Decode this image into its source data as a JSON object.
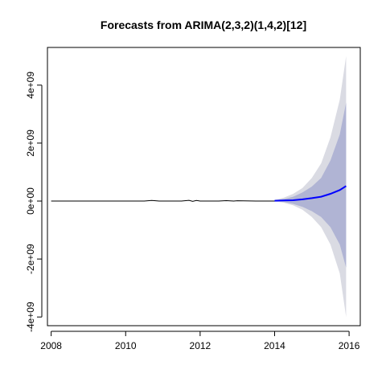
{
  "chart_data": {
    "type": "line",
    "title": "Forecasts from ARIMA(2,3,2)(1,4,2)[12]",
    "xlabel": "",
    "ylabel": "",
    "xlim": [
      2007.9,
      2016.3
    ],
    "ylim": [
      -4300000000.0,
      5300000000.0
    ],
    "x_ticks": [
      2008,
      2010,
      2012,
      2014,
      2016
    ],
    "x_tick_labels": [
      "2008",
      "2010",
      "2012",
      "2014",
      "2016"
    ],
    "y_ticks": [
      -4000000000.0,
      -2000000000.0,
      0,
      2000000000.0,
      4000000000.0
    ],
    "y_tick_labels": [
      "-4e+09",
      "-2e+09",
      "0e+00",
      "2e+09",
      "4e+09"
    ],
    "colors": {
      "observed": "#000000",
      "forecast": "#0000ff",
      "band_80": "#b0b4d4",
      "band_95": "#dadbe3"
    },
    "observed": {
      "x": [
        2008.0,
        2008.5,
        2009.0,
        2009.5,
        2010.0,
        2010.5,
        2010.7,
        2010.9,
        2011.0,
        2011.5,
        2011.7,
        2011.8,
        2011.9,
        2012.0,
        2012.5,
        2012.7,
        2012.9,
        2013.0,
        2013.5,
        2014.0
      ],
      "y": [
        0,
        0,
        0,
        0,
        0,
        0,
        20000000,
        0,
        0,
        0,
        25000000,
        -10000000,
        20000000,
        0,
        0,
        15000000,
        0,
        10000000,
        0,
        0
      ]
    },
    "forecast": {
      "x": [
        2014.0,
        2014.25,
        2014.5,
        2014.75,
        2015.0,
        2015.25,
        2015.5,
        2015.75,
        2015.92
      ],
      "y": [
        10000000,
        20000000,
        30000000,
        60000000,
        100000000,
        150000000,
        250000000,
        380000000,
        520000000
      ],
      "lo80": [
        0,
        -30000000,
        -100000000,
        -200000000,
        -350000000,
        -550000000,
        -900000000,
        -1500000000,
        -2300000000
      ],
      "hi80": [
        30000000,
        70000000,
        150000000,
        300000000,
        500000000,
        800000000,
        1400000000,
        2300000000,
        3400000000
      ],
      "lo95": [
        -10000000,
        -60000000,
        -150000000,
        -300000000,
        -550000000,
        -900000000,
        -1500000000,
        -2500000000,
        -4000000000
      ],
      "hi95": [
        40000000,
        120000000,
        250000000,
        450000000,
        800000000,
        1300000000,
        2200000000,
        3500000000,
        5000000000
      ]
    }
  }
}
